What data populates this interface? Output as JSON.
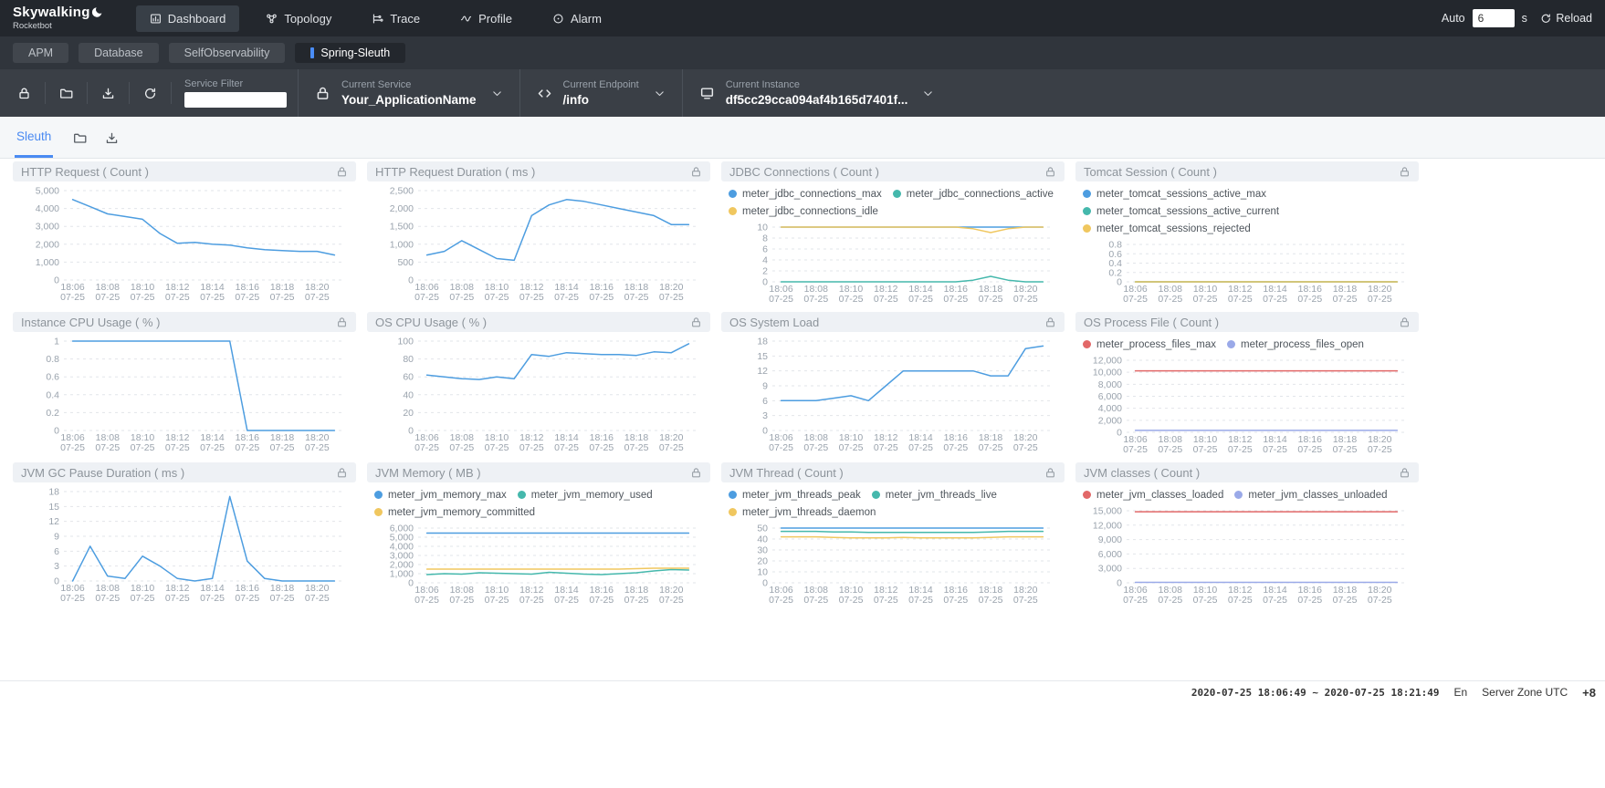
{
  "navbar": {
    "logo_title": "Skywalking",
    "logo_subtitle": "Rocketbot",
    "menu": [
      {
        "label": "Dashboard",
        "icon": "dashboard-icon",
        "active": true
      },
      {
        "label": "Topology",
        "icon": "topology-icon",
        "active": false
      },
      {
        "label": "Trace",
        "icon": "trace-icon",
        "active": false
      },
      {
        "label": "Profile",
        "icon": "profile-icon",
        "active": false
      },
      {
        "label": "Alarm",
        "icon": "alarm-icon",
        "active": false
      }
    ],
    "auto_label": "Auto",
    "auto_value": "6",
    "auto_unit": "s",
    "reload_icon": "refresh-icon",
    "reload_label": "Reload"
  },
  "group_tabs": [
    {
      "label": "APM",
      "active": false
    },
    {
      "label": "Database",
      "active": false
    },
    {
      "label": "SelfObservability",
      "active": false
    },
    {
      "label": "Spring-Sleuth",
      "active": true
    }
  ],
  "toolbar": {
    "left_icons": [
      "lock-icon",
      "folder-icon",
      "download-icon",
      "refresh-icon"
    ],
    "service_filter_label": "Service Filter",
    "service_filter_value": "",
    "selectors": [
      {
        "icon": "lock-icon",
        "label": "Current Service",
        "value": "Your_ApplicationName",
        "chevron": "chevron-down-icon"
      },
      {
        "icon": "code-icon",
        "label": "Current Endpoint",
        "value": "/info",
        "chevron": "chevron-down-icon"
      },
      {
        "icon": "instance-icon",
        "label": "Current Instance",
        "value": "df5cc29cca094af4b165d7401f...",
        "chevron": "chevron-down-icon"
      }
    ]
  },
  "subtabs": {
    "active_tab": "Sleuth",
    "icons": [
      "folder-icon",
      "download-icon"
    ]
  },
  "footer": {
    "time_range": "2020-07-25 18:06:49 ~ 2020-07-25 18:21:49",
    "language": "En",
    "timezone_label": "Server Zone UTC",
    "timezone_value": "+8"
  },
  "accent_colors": {
    "blue": "#4d9de0",
    "teal": "#45b8ac",
    "yellow": "#f0c75f",
    "red": "#e26868",
    "purple": "#9aa9e8",
    "link_blue": "#4a8af2"
  },
  "chart_data": [
    {
      "type": "line",
      "title": "HTTP Request ( Count )",
      "header_icon": "lock-icon",
      "x_ticks": [
        "18:06",
        "18:08",
        "18:10",
        "18:12",
        "18:14",
        "18:16",
        "18:18",
        "18:20"
      ],
      "x_sub": "07-25",
      "y_ticks": [
        0,
        1000,
        2000,
        3000,
        4000,
        5000
      ],
      "ylim": [
        0,
        5000
      ],
      "grid": true,
      "legend_rows": 0,
      "series": [
        {
          "name": "",
          "color": "#4d9de0",
          "values": [
            4500,
            4100,
            3700,
            3550,
            3400,
            2600,
            2050,
            2100,
            2000,
            1950,
            1800,
            1700,
            1650,
            1600,
            1600,
            1400
          ]
        }
      ]
    },
    {
      "type": "line",
      "title": "HTTP Request Duration ( ms )",
      "header_icon": "lock-icon",
      "x_ticks": [
        "18:06",
        "18:08",
        "18:10",
        "18:12",
        "18:14",
        "18:16",
        "18:18",
        "18:20"
      ],
      "x_sub": "07-25",
      "y_ticks": [
        0,
        500,
        1000,
        1500,
        2000,
        2500
      ],
      "ylim": [
        0,
        2500
      ],
      "grid": true,
      "legend_rows": 0,
      "series": [
        {
          "name": "",
          "color": "#4d9de0",
          "values": [
            700,
            800,
            1100,
            850,
            600,
            550,
            1800,
            2100,
            2250,
            2200,
            2100,
            2000,
            1900,
            1800,
            1550,
            1550
          ]
        }
      ]
    },
    {
      "type": "line",
      "title": "JDBC Connections ( Count )",
      "header_icon": "lock-icon",
      "x_ticks": [
        "18:06",
        "18:08",
        "18:10",
        "18:12",
        "18:14",
        "18:16",
        "18:18",
        "18:20"
      ],
      "x_sub": "07-25",
      "y_ticks": [
        0,
        2,
        4,
        6,
        8,
        10
      ],
      "ylim": [
        0,
        10
      ],
      "grid": true,
      "legend_rows": 2,
      "series": [
        {
          "name": "meter_jdbc_connections_max",
          "color": "#4d9de0",
          "values": [
            10,
            10,
            10,
            10,
            10,
            10,
            10,
            10,
            10,
            10,
            10,
            10,
            10,
            10,
            10,
            10
          ]
        },
        {
          "name": "meter_jdbc_connections_active",
          "color": "#45b8ac",
          "values": [
            0,
            0,
            0,
            0,
            0,
            0,
            0,
            0,
            0,
            0,
            0,
            0.3,
            1,
            0.3,
            0,
            0
          ]
        },
        {
          "name": "meter_jdbc_connections_idle",
          "color": "#f0c75f",
          "values": [
            10,
            10,
            10,
            10,
            10,
            10,
            10,
            10,
            10,
            10,
            10,
            9.7,
            9,
            9.7,
            10,
            10
          ]
        }
      ]
    },
    {
      "type": "line",
      "title": "Tomcat Session ( Count )",
      "header_icon": "lock-icon",
      "x_ticks": [
        "18:06",
        "18:08",
        "18:10",
        "18:12",
        "18:14",
        "18:16",
        "18:18",
        "18:20"
      ],
      "x_sub": "07-25",
      "y_ticks": [
        0,
        0.2,
        0.4,
        0.6,
        0.8
      ],
      "ylim": [
        0,
        0.8
      ],
      "grid": true,
      "legend_rows": 3,
      "series": [
        {
          "name": "meter_tomcat_sessions_active_max",
          "color": "#4d9de0",
          "values": [
            0,
            0,
            0,
            0,
            0,
            0,
            0,
            0,
            0,
            0,
            0,
            0,
            0,
            0,
            0,
            0
          ]
        },
        {
          "name": "meter_tomcat_sessions_active_current",
          "color": "#45b8ac",
          "values": [
            0,
            0,
            0,
            0,
            0,
            0,
            0,
            0,
            0,
            0,
            0,
            0,
            0,
            0,
            0,
            0
          ]
        },
        {
          "name": "meter_tomcat_sessions_rejected",
          "color": "#f0c75f",
          "values": [
            0,
            0,
            0,
            0,
            0,
            0,
            0,
            0,
            0,
            0,
            0,
            0,
            0,
            0,
            0,
            0
          ]
        }
      ]
    },
    {
      "type": "line",
      "title": "Instance CPU Usage ( % )",
      "header_icon": "lock-icon",
      "x_ticks": [
        "18:06",
        "18:08",
        "18:10",
        "18:12",
        "18:14",
        "18:16",
        "18:18",
        "18:20"
      ],
      "x_sub": "07-25",
      "y_ticks": [
        0,
        0.2,
        0.4,
        0.6,
        0.8,
        1
      ],
      "ylim": [
        0,
        1
      ],
      "grid": true,
      "legend_rows": 0,
      "series": [
        {
          "name": "",
          "color": "#4d9de0",
          "values": [
            1,
            1,
            1,
            1,
            1,
            1,
            1,
            1,
            1,
            1,
            0,
            0,
            0,
            0,
            0,
            0
          ]
        }
      ]
    },
    {
      "type": "line",
      "title": "OS CPU Usage ( % )",
      "header_icon": "lock-icon",
      "x_ticks": [
        "18:06",
        "18:08",
        "18:10",
        "18:12",
        "18:14",
        "18:16",
        "18:18",
        "18:20"
      ],
      "x_sub": "07-25",
      "y_ticks": [
        0,
        20,
        40,
        60,
        80,
        100
      ],
      "ylim": [
        0,
        100
      ],
      "grid": true,
      "legend_rows": 0,
      "series": [
        {
          "name": "",
          "color": "#4d9de0",
          "values": [
            62,
            60,
            58,
            57,
            60,
            58,
            85,
            83,
            87,
            86,
            85,
            85,
            84,
            88,
            87,
            97
          ]
        }
      ]
    },
    {
      "type": "line",
      "title": "OS System Load",
      "header_icon": "lock-icon",
      "x_ticks": [
        "18:06",
        "18:08",
        "18:10",
        "18:12",
        "18:14",
        "18:16",
        "18:18",
        "18:20"
      ],
      "x_sub": "07-25",
      "y_ticks": [
        0,
        3,
        6,
        9,
        12,
        15,
        18
      ],
      "ylim": [
        0,
        18
      ],
      "grid": true,
      "legend_rows": 0,
      "series": [
        {
          "name": "",
          "color": "#4d9de0",
          "values": [
            6,
            6,
            6,
            6.5,
            7,
            6,
            9,
            12,
            12,
            12,
            12,
            12,
            11,
            11,
            16.5,
            17
          ]
        }
      ]
    },
    {
      "type": "line",
      "title": "OS Process File ( Count )",
      "header_icon": "lock-icon",
      "x_ticks": [
        "18:06",
        "18:08",
        "18:10",
        "18:12",
        "18:14",
        "18:16",
        "18:18",
        "18:20"
      ],
      "x_sub": "07-25",
      "y_ticks": [
        0,
        2000,
        4000,
        6000,
        8000,
        10000,
        12000
      ],
      "ylim": [
        0,
        12000
      ],
      "grid": true,
      "legend_rows": 1,
      "series": [
        {
          "name": "meter_process_files_max",
          "color": "#e26868",
          "values": [
            10240,
            10240,
            10240,
            10240,
            10240,
            10240,
            10240,
            10240,
            10240,
            10240,
            10240,
            10240,
            10240,
            10240,
            10240,
            10240
          ]
        },
        {
          "name": "meter_process_files_open",
          "color": "#9aa9e8",
          "values": [
            320,
            320,
            320,
            320,
            320,
            320,
            320,
            320,
            320,
            320,
            320,
            320,
            320,
            320,
            320,
            320
          ]
        }
      ]
    },
    {
      "type": "line",
      "title": "JVM GC Pause Duration ( ms )",
      "header_icon": "lock-icon",
      "x_ticks": [
        "18:06",
        "18:08",
        "18:10",
        "18:12",
        "18:14",
        "18:16",
        "18:18",
        "18:20"
      ],
      "x_sub": "07-25",
      "y_ticks": [
        0,
        3,
        6,
        9,
        12,
        15,
        18
      ],
      "ylim": [
        0,
        18
      ],
      "grid": true,
      "legend_rows": 0,
      "series": [
        {
          "name": "",
          "color": "#4d9de0",
          "values": [
            0,
            7,
            1,
            0.5,
            5,
            3,
            0.5,
            0,
            0.5,
            17,
            4,
            0.5,
            0,
            0,
            0,
            0
          ]
        }
      ]
    },
    {
      "type": "line",
      "title": "JVM Memory ( MB )",
      "header_icon": "lock-icon",
      "x_ticks": [
        "18:06",
        "18:08",
        "18:10",
        "18:12",
        "18:14",
        "18:16",
        "18:18",
        "18:20"
      ],
      "x_sub": "07-25",
      "y_ticks": [
        0,
        1000,
        2000,
        3000,
        4000,
        5000,
        6000
      ],
      "ylim": [
        0,
        6000
      ],
      "grid": true,
      "legend_rows": 2,
      "series": [
        {
          "name": "meter_jvm_memory_max",
          "color": "#4d9de0",
          "values": [
            5450,
            5450,
            5450,
            5450,
            5450,
            5450,
            5450,
            5450,
            5450,
            5450,
            5450,
            5450,
            5450,
            5450,
            5450,
            5450
          ]
        },
        {
          "name": "meter_jvm_memory_used",
          "color": "#45b8ac",
          "values": [
            900,
            1000,
            950,
            1100,
            1050,
            1000,
            950,
            1150,
            1050,
            950,
            900,
            1000,
            1100,
            1300,
            1450,
            1400
          ]
        },
        {
          "name": "meter_jvm_memory_committed",
          "color": "#f0c75f",
          "values": [
            1500,
            1500,
            1500,
            1500,
            1500,
            1500,
            1500,
            1500,
            1500,
            1500,
            1500,
            1500,
            1550,
            1600,
            1600,
            1600
          ]
        }
      ]
    },
    {
      "type": "line",
      "title": "JVM Thread ( Count )",
      "header_icon": "lock-icon",
      "x_ticks": [
        "18:06",
        "18:08",
        "18:10",
        "18:12",
        "18:14",
        "18:16",
        "18:18",
        "18:20"
      ],
      "x_sub": "07-25",
      "y_ticks": [
        0,
        10,
        20,
        30,
        40,
        50
      ],
      "ylim": [
        0,
        50
      ],
      "grid": true,
      "legend_rows": 2,
      "series": [
        {
          "name": "meter_jvm_threads_peak",
          "color": "#4d9de0",
          "values": [
            50,
            50,
            50,
            50,
            50,
            50,
            50,
            50,
            50,
            50,
            50,
            50,
            50,
            50,
            50,
            50
          ]
        },
        {
          "name": "meter_jvm_threads_live",
          "color": "#45b8ac",
          "values": [
            47,
            47,
            47,
            46.5,
            46.5,
            46,
            46,
            46,
            46,
            46,
            46,
            46,
            46.5,
            47,
            47,
            47
          ]
        },
        {
          "name": "meter_jvm_threads_daemon",
          "color": "#f0c75f",
          "values": [
            42,
            42,
            42,
            41.5,
            41,
            41,
            41,
            41.5,
            41,
            41,
            41,
            41,
            41.5,
            42,
            42,
            42
          ]
        }
      ]
    },
    {
      "type": "line",
      "title": "JVM classes ( Count )",
      "header_icon": "lock-icon",
      "x_ticks": [
        "18:06",
        "18:08",
        "18:10",
        "18:12",
        "18:14",
        "18:16",
        "18:18",
        "18:20"
      ],
      "x_sub": "07-25",
      "y_ticks": [
        0,
        3000,
        6000,
        9000,
        12000,
        15000
      ],
      "ylim": [
        0,
        15000
      ],
      "grid": true,
      "legend_rows": 1,
      "series": [
        {
          "name": "meter_jvm_classes_loaded",
          "color": "#e26868",
          "values": [
            14800,
            14800,
            14800,
            14800,
            14800,
            14800,
            14800,
            14800,
            14800,
            14800,
            14800,
            14800,
            14800,
            14800,
            14800,
            14800
          ]
        },
        {
          "name": "meter_jvm_classes_unloaded",
          "color": "#9aa9e8",
          "values": [
            100,
            100,
            100,
            100,
            100,
            100,
            100,
            100,
            100,
            100,
            100,
            100,
            100,
            100,
            100,
            100
          ]
        }
      ]
    }
  ]
}
